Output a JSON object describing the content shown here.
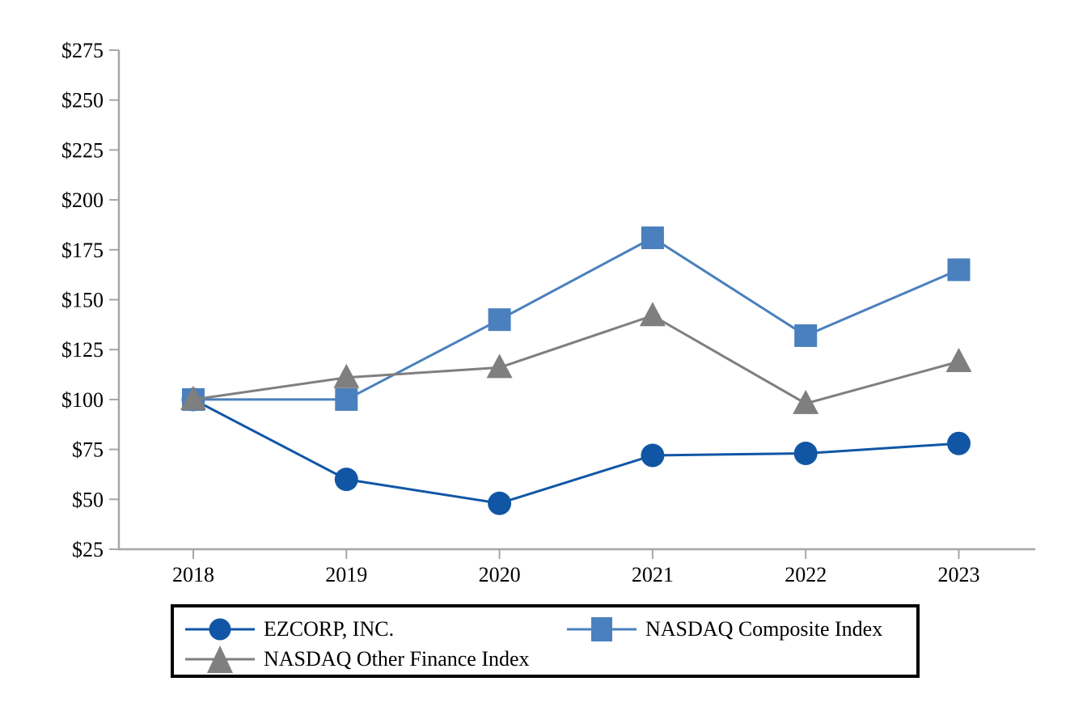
{
  "chart_data": {
    "type": "line",
    "x_axis": {
      "categories": [
        "2018",
        "2019",
        "2020",
        "2021",
        "2022",
        "2023"
      ]
    },
    "y_axis": {
      "ticks": [
        {
          "label": "$275",
          "value": 275
        },
        {
          "label": "$250",
          "value": 250
        },
        {
          "label": "$225",
          "value": 225
        },
        {
          "label": "$200",
          "value": 200
        },
        {
          "label": "$175",
          "value": 175
        },
        {
          "label": "$150",
          "value": 150
        },
        {
          "label": "$125",
          "value": 125
        },
        {
          "label": "$100",
          "value": 100
        },
        {
          "label": "$75",
          "value": 75
        },
        {
          "label": "$50",
          "value": 50
        },
        {
          "label": "$25",
          "value": 25
        }
      ]
    },
    "ylim": [
      25,
      275
    ],
    "grid": false,
    "legend_position": "bottom",
    "axis_color": "#a6a6a6",
    "series": [
      {
        "name": "EZCORP, INC.",
        "marker": "circle",
        "color": "#1156a5",
        "values": [
          100,
          60,
          48,
          72,
          73,
          78
        ]
      },
      {
        "name": "NASDAQ Composite Index",
        "marker": "square",
        "color": "#4a80bd",
        "values": [
          100,
          100,
          140,
          181,
          132,
          165
        ]
      },
      {
        "name": "NASDAQ Other Finance Index",
        "marker": "triangle",
        "color": "#7f7f7f",
        "values": [
          100,
          111,
          116,
          142,
          98,
          119
        ]
      }
    ]
  }
}
